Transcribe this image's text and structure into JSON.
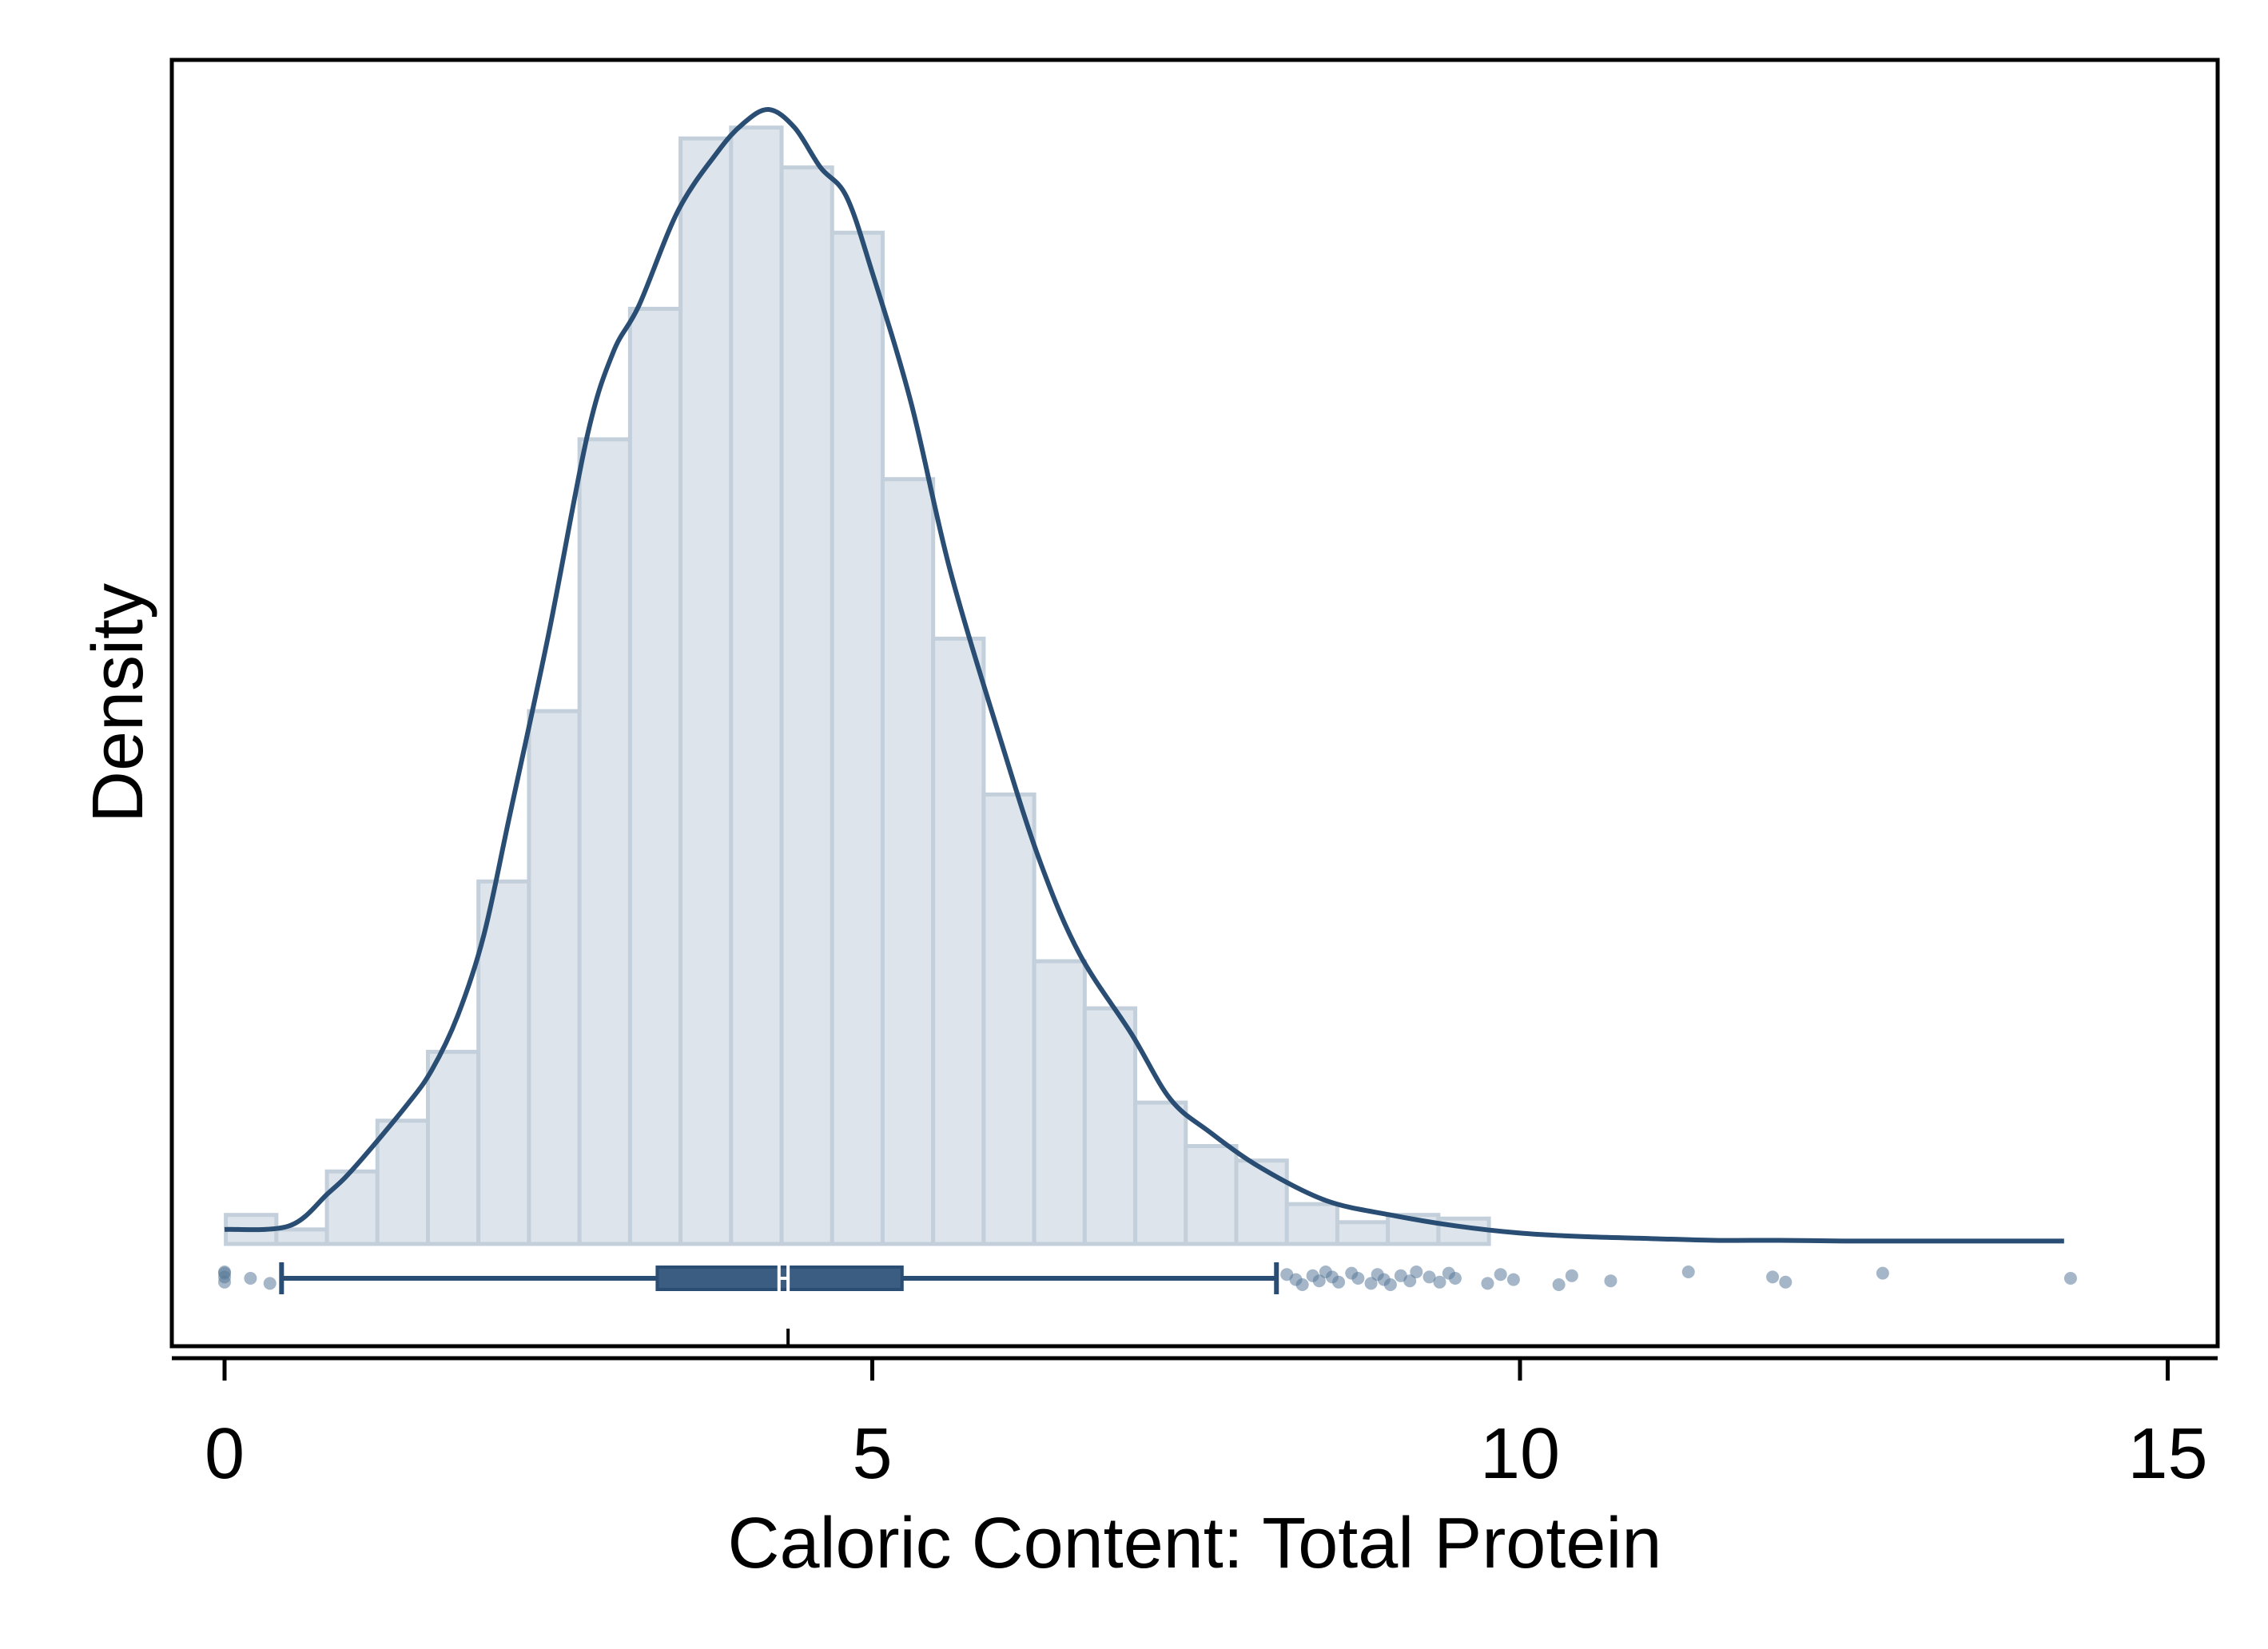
{
  "chart_data": {
    "type": "histogram",
    "title": "",
    "xlabel": "Caloric Content: Total Protein",
    "ylabel": "Density",
    "xlim": [
      -0.4,
      15.4
    ],
    "x_ticks": [
      0,
      5,
      10,
      15
    ],
    "x_tick_labels": [
      "0",
      "5",
      "10",
      "15"
    ],
    "y_ticks_shown": false,
    "grid": false,
    "legend": "none",
    "colors": {
      "bar_fill": "#dde4eb",
      "bar_stroke": "#c3cfdb",
      "line": "#2a4d73",
      "box_fill": "#3b5d82",
      "point": "#5a7a99"
    },
    "bin_width": 0.39,
    "bins": [
      {
        "x0": 0.01,
        "x1": 0.4,
        "density": 0.008
      },
      {
        "x0": 0.4,
        "x1": 0.79,
        "density": 0.004
      },
      {
        "x0": 0.79,
        "x1": 1.18,
        "density": 0.02
      },
      {
        "x0": 1.18,
        "x1": 1.57,
        "density": 0.034
      },
      {
        "x0": 1.57,
        "x1": 1.96,
        "density": 0.053
      },
      {
        "x0": 1.96,
        "x1": 2.35,
        "density": 0.1
      },
      {
        "x0": 2.35,
        "x1": 2.74,
        "density": 0.147
      },
      {
        "x0": 2.74,
        "x1": 3.13,
        "density": 0.222
      },
      {
        "x0": 3.13,
        "x1": 3.52,
        "density": 0.258
      },
      {
        "x0": 3.52,
        "x1": 3.91,
        "density": 0.305
      },
      {
        "x0": 3.91,
        "x1": 4.3,
        "density": 0.308
      },
      {
        "x0": 4.3,
        "x1": 4.69,
        "density": 0.297
      },
      {
        "x0": 4.69,
        "x1": 5.08,
        "density": 0.279
      },
      {
        "x0": 5.08,
        "x1": 5.47,
        "density": 0.211
      },
      {
        "x0": 5.47,
        "x1": 5.86,
        "density": 0.167
      },
      {
        "x0": 5.86,
        "x1": 6.25,
        "density": 0.124
      },
      {
        "x0": 6.25,
        "x1": 6.64,
        "density": 0.078
      },
      {
        "x0": 6.64,
        "x1": 7.03,
        "density": 0.065
      },
      {
        "x0": 7.03,
        "x1": 7.42,
        "density": 0.039
      },
      {
        "x0": 7.42,
        "x1": 7.81,
        "density": 0.027
      },
      {
        "x0": 7.81,
        "x1": 8.2,
        "density": 0.023
      },
      {
        "x0": 8.2,
        "x1": 8.59,
        "density": 0.011
      },
      {
        "x0": 8.59,
        "x1": 8.98,
        "density": 0.006
      },
      {
        "x0": 8.98,
        "x1": 9.37,
        "density": 0.008
      },
      {
        "x0": 9.37,
        "x1": 9.76,
        "density": 0.007
      }
    ],
    "density_curve": {
      "x": [
        0.0,
        0.5,
        0.8,
        1.0,
        1.4,
        1.6,
        1.8,
        2.0,
        2.2,
        2.5,
        2.8,
        3.0,
        3.2,
        3.5,
        3.8,
        4.0,
        4.2,
        4.4,
        4.6,
        4.8,
        5.0,
        5.3,
        5.6,
        6.0,
        6.3,
        6.6,
        7.0,
        7.3,
        7.6,
        8.0,
        8.5,
        9.0,
        9.5,
        10.0,
        10.5,
        11.0,
        11.5,
        12.0,
        12.5,
        13.0,
        13.5,
        14.0,
        14.2
      ],
      "y": [
        0.004,
        0.005,
        0.014,
        0.021,
        0.038,
        0.048,
        0.063,
        0.085,
        0.118,
        0.168,
        0.223,
        0.246,
        0.259,
        0.285,
        0.301,
        0.309,
        0.313,
        0.308,
        0.297,
        0.289,
        0.268,
        0.232,
        0.186,
        0.138,
        0.105,
        0.08,
        0.058,
        0.04,
        0.031,
        0.021,
        0.012,
        0.008,
        0.005,
        0.003,
        0.002,
        0.0015,
        0.001,
        0.001,
        0.0008,
        0.0008,
        0.0008,
        0.0008,
        0.0008
      ]
    },
    "boxplot": {
      "whisker_low": 0.44,
      "q1": 3.34,
      "median": 4.35,
      "mean": 4.28,
      "q3": 5.23,
      "whisker_high": 8.12,
      "outliers": [
        0.0,
        0.0,
        0.0,
        0.0,
        0.2,
        0.35,
        8.2,
        8.27,
        8.32,
        8.4,
        8.45,
        8.5,
        8.55,
        8.6,
        8.7,
        8.75,
        8.85,
        8.9,
        8.95,
        9.0,
        9.08,
        9.15,
        9.2,
        9.3,
        9.38,
        9.45,
        9.5,
        9.75,
        9.85,
        9.95,
        10.3,
        10.4,
        10.7,
        11.3,
        11.95,
        12.05,
        12.8,
        14.25
      ]
    },
    "median_tick_x": 4.35
  }
}
